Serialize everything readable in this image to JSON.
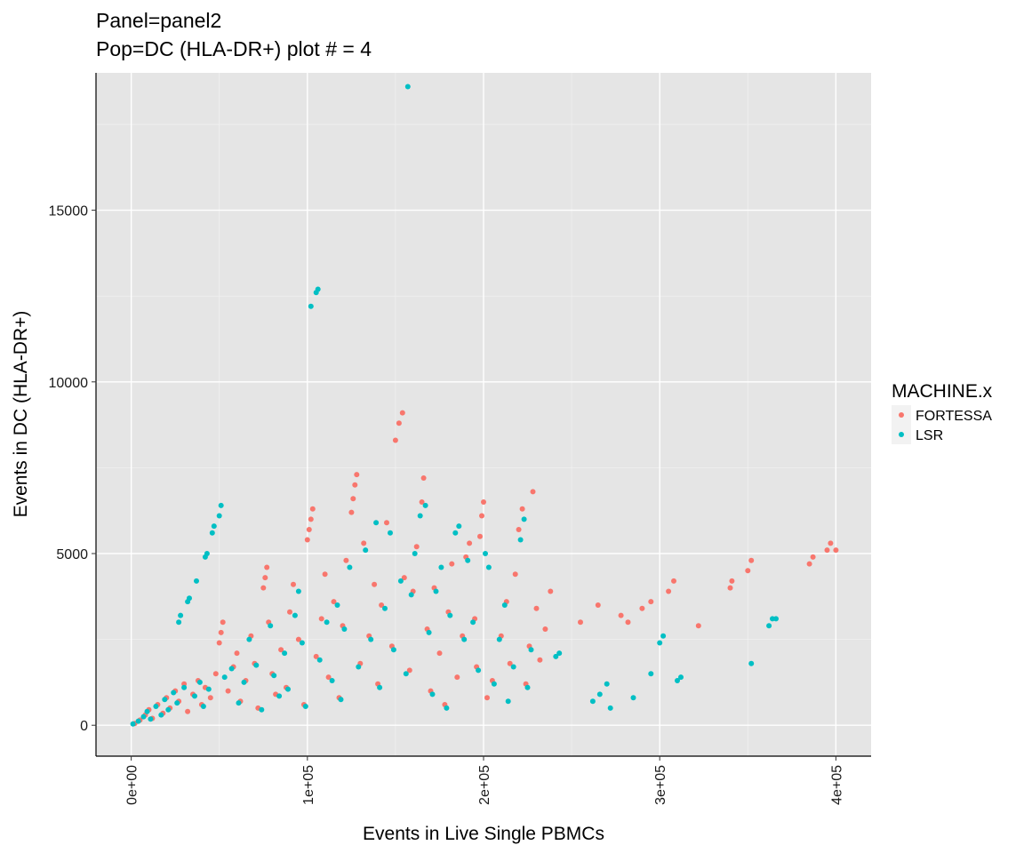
{
  "chart_data": {
    "type": "scatter",
    "title": "Panel=panel2",
    "subtitle": "Pop=DC (HLA-DR+) plot # = 4",
    "xlabel": "Events in Live Single PBMCs",
    "ylabel": "Events in DC (HLA-DR+)",
    "xlim": [
      -20000,
      420000
    ],
    "ylim": [
      -900,
      19000
    ],
    "x_ticks": [
      0,
      100000,
      200000,
      300000,
      400000
    ],
    "x_tick_labels": [
      "0e+00",
      "1e+05",
      "2e+05",
      "3e+05",
      "4e+05"
    ],
    "y_ticks": [
      0,
      5000,
      10000,
      15000
    ],
    "y_tick_labels": [
      "0",
      "5000",
      "10000",
      "15000"
    ],
    "grid": true,
    "legend_position": "right",
    "legend_title": "MACHINE.x",
    "series": [
      {
        "name": "FORTESSA",
        "color": "#F8766D",
        "points": [
          [
            2000,
            50
          ],
          [
            5000,
            150
          ],
          [
            8000,
            300
          ],
          [
            10000,
            450
          ],
          [
            12000,
            200
          ],
          [
            15000,
            600
          ],
          [
            18000,
            350
          ],
          [
            20000,
            800
          ],
          [
            22000,
            500
          ],
          [
            25000,
            1000
          ],
          [
            27000,
            700
          ],
          [
            30000,
            1200
          ],
          [
            32000,
            400
          ],
          [
            35000,
            900
          ],
          [
            38000,
            1300
          ],
          [
            40000,
            600
          ],
          [
            42000,
            1100
          ],
          [
            45000,
            800
          ],
          [
            48000,
            1500
          ],
          [
            50000,
            2400
          ],
          [
            51000,
            2700
          ],
          [
            52000,
            3000
          ],
          [
            55000,
            1000
          ],
          [
            58000,
            1700
          ],
          [
            60000,
            2100
          ],
          [
            62000,
            700
          ],
          [
            65000,
            1300
          ],
          [
            68000,
            2600
          ],
          [
            70000,
            1800
          ],
          [
            72000,
            500
          ],
          [
            75000,
            4000
          ],
          [
            76000,
            4300
          ],
          [
            77000,
            4600
          ],
          [
            78000,
            3000
          ],
          [
            80000,
            1500
          ],
          [
            82000,
            900
          ],
          [
            85000,
            2200
          ],
          [
            88000,
            1100
          ],
          [
            90000,
            3300
          ],
          [
            92000,
            4100
          ],
          [
            95000,
            2500
          ],
          [
            98000,
            600
          ],
          [
            100000,
            5400
          ],
          [
            101000,
            5700
          ],
          [
            102000,
            6000
          ],
          [
            103000,
            6300
          ],
          [
            105000,
            2000
          ],
          [
            108000,
            3100
          ],
          [
            110000,
            4400
          ],
          [
            112000,
            1400
          ],
          [
            115000,
            3600
          ],
          [
            118000,
            800
          ],
          [
            120000,
            2900
          ],
          [
            122000,
            4800
          ],
          [
            125000,
            6200
          ],
          [
            126000,
            6600
          ],
          [
            127000,
            7000
          ],
          [
            128000,
            7300
          ],
          [
            130000,
            1800
          ],
          [
            132000,
            5300
          ],
          [
            135000,
            2600
          ],
          [
            138000,
            4100
          ],
          [
            140000,
            1200
          ],
          [
            142000,
            3500
          ],
          [
            145000,
            5900
          ],
          [
            148000,
            2300
          ],
          [
            150000,
            8300
          ],
          [
            152000,
            8800
          ],
          [
            154000,
            9100
          ],
          [
            155000,
            4300
          ],
          [
            158000,
            1600
          ],
          [
            160000,
            3900
          ],
          [
            162000,
            5200
          ],
          [
            165000,
            6500
          ],
          [
            166000,
            7200
          ],
          [
            168000,
            2800
          ],
          [
            170000,
            1000
          ],
          [
            172000,
            4000
          ],
          [
            175000,
            2100
          ],
          [
            178000,
            600
          ],
          [
            180000,
            3300
          ],
          [
            182000,
            4700
          ],
          [
            185000,
            1400
          ],
          [
            188000,
            2600
          ],
          [
            190000,
            4900
          ],
          [
            192000,
            5300
          ],
          [
            195000,
            3100
          ],
          [
            196000,
            1700
          ],
          [
            198000,
            5500
          ],
          [
            199000,
            6100
          ],
          [
            200000,
            6500
          ],
          [
            202000,
            800
          ],
          [
            205000,
            1300
          ],
          [
            210000,
            2600
          ],
          [
            213000,
            3600
          ],
          [
            215000,
            1800
          ],
          [
            218000,
            4400
          ],
          [
            220000,
            5700
          ],
          [
            222000,
            6300
          ],
          [
            224000,
            1200
          ],
          [
            226000,
            2300
          ],
          [
            228000,
            6800
          ],
          [
            230000,
            3400
          ],
          [
            232000,
            1900
          ],
          [
            235000,
            2800
          ],
          [
            238000,
            3900
          ],
          [
            255000,
            3000
          ],
          [
            265000,
            3500
          ],
          [
            278000,
            3200
          ],
          [
            282000,
            3000
          ],
          [
            290000,
            3400
          ],
          [
            295000,
            3600
          ],
          [
            305000,
            3900
          ],
          [
            308000,
            4200
          ],
          [
            322000,
            2900
          ],
          [
            340000,
            4000
          ],
          [
            341000,
            4200
          ],
          [
            350000,
            4500
          ],
          [
            352000,
            4800
          ],
          [
            385000,
            4700
          ],
          [
            387000,
            4900
          ],
          [
            395000,
            5100
          ],
          [
            397000,
            5300
          ],
          [
            400000,
            5100
          ]
        ]
      },
      {
        "name": "LSR",
        "color": "#00BFC4",
        "points": [
          [
            1000,
            40
          ],
          [
            4000,
            120
          ],
          [
            7000,
            250
          ],
          [
            9000,
            400
          ],
          [
            11000,
            180
          ],
          [
            14000,
            550
          ],
          [
            17000,
            300
          ],
          [
            19000,
            750
          ],
          [
            21000,
            450
          ],
          [
            24000,
            950
          ],
          [
            26000,
            650
          ],
          [
            27000,
            3000
          ],
          [
            28000,
            3200
          ],
          [
            30000,
            1100
          ],
          [
            32000,
            3600
          ],
          [
            33000,
            3700
          ],
          [
            36000,
            850
          ],
          [
            37000,
            4200
          ],
          [
            39000,
            1250
          ],
          [
            41000,
            550
          ],
          [
            42000,
            4900
          ],
          [
            43000,
            5000
          ],
          [
            44000,
            1050
          ],
          [
            46000,
            5600
          ],
          [
            47000,
            5800
          ],
          [
            50000,
            6100
          ],
          [
            51000,
            6400
          ],
          [
            53000,
            1400
          ],
          [
            57000,
            1650
          ],
          [
            61000,
            650
          ],
          [
            64000,
            1250
          ],
          [
            67000,
            2500
          ],
          [
            71000,
            1750
          ],
          [
            74000,
            450
          ],
          [
            79000,
            2900
          ],
          [
            81000,
            1450
          ],
          [
            84000,
            850
          ],
          [
            87000,
            2100
          ],
          [
            89000,
            1050
          ],
          [
            93000,
            3200
          ],
          [
            95000,
            3900
          ],
          [
            97000,
            2400
          ],
          [
            99000,
            550
          ],
          [
            102000,
            12200
          ],
          [
            105000,
            12600
          ],
          [
            106000,
            12700
          ],
          [
            107000,
            1900
          ],
          [
            111000,
            3000
          ],
          [
            114000,
            1300
          ],
          [
            117000,
            3500
          ],
          [
            119000,
            750
          ],
          [
            121000,
            2800
          ],
          [
            124000,
            4600
          ],
          [
            129000,
            1700
          ],
          [
            133000,
            5100
          ],
          [
            136000,
            2500
          ],
          [
            139000,
            5900
          ],
          [
            141000,
            1100
          ],
          [
            144000,
            3400
          ],
          [
            147000,
            5600
          ],
          [
            149000,
            2200
          ],
          [
            153000,
            4200
          ],
          [
            156000,
            1500
          ],
          [
            157000,
            18600
          ],
          [
            159000,
            3800
          ],
          [
            161000,
            5000
          ],
          [
            164000,
            6100
          ],
          [
            167000,
            6400
          ],
          [
            169000,
            2700
          ],
          [
            171000,
            900
          ],
          [
            173000,
            3900
          ],
          [
            176000,
            4600
          ],
          [
            179000,
            500
          ],
          [
            181000,
            3200
          ],
          [
            184000,
            5600
          ],
          [
            186000,
            5800
          ],
          [
            189000,
            2500
          ],
          [
            191000,
            4800
          ],
          [
            194000,
            3000
          ],
          [
            197000,
            1600
          ],
          [
            201000,
            5000
          ],
          [
            203000,
            4600
          ],
          [
            206000,
            1200
          ],
          [
            209000,
            2500
          ],
          [
            212000,
            3500
          ],
          [
            214000,
            700
          ],
          [
            217000,
            1700
          ],
          [
            221000,
            5400
          ],
          [
            223000,
            6000
          ],
          [
            225000,
            1100
          ],
          [
            227000,
            2200
          ],
          [
            241000,
            2000
          ],
          [
            243000,
            2100
          ],
          [
            262000,
            700
          ],
          [
            266000,
            900
          ],
          [
            270000,
            1200
          ],
          [
            272000,
            500
          ],
          [
            285000,
            800
          ],
          [
            295000,
            1500
          ],
          [
            300000,
            2400
          ],
          [
            302000,
            2600
          ],
          [
            310000,
            1300
          ],
          [
            312000,
            1400
          ],
          [
            352000,
            1800
          ],
          [
            362000,
            2900
          ],
          [
            364000,
            3100
          ],
          [
            366000,
            3100
          ]
        ]
      }
    ]
  }
}
